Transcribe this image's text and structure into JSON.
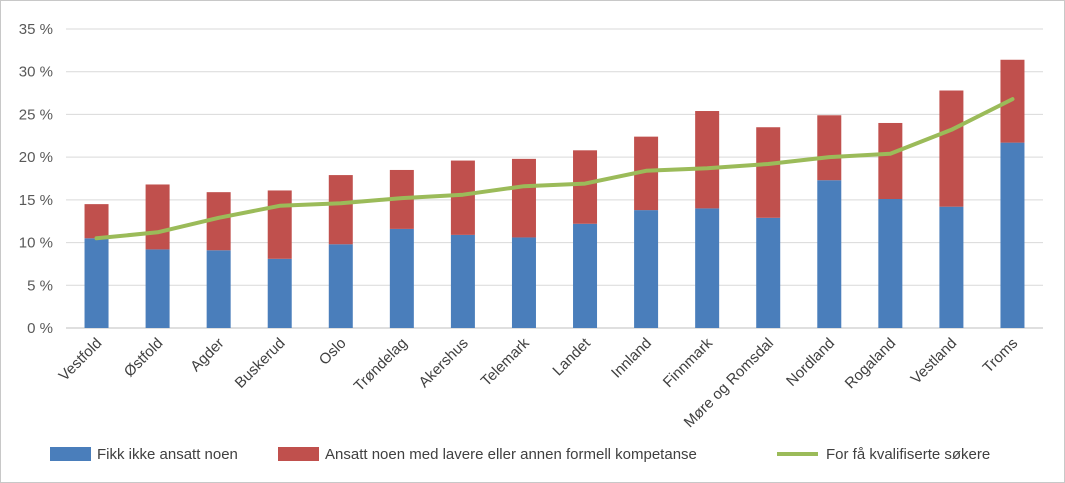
{
  "chart_data": {
    "type": "bar",
    "stacked": true,
    "title": "",
    "xlabel": "",
    "ylabel": "",
    "ylim": [
      0,
      35
    ],
    "y_ticks": [
      0,
      5,
      10,
      15,
      20,
      25,
      30,
      35
    ],
    "y_tick_labels": [
      "0 %",
      "5 %",
      "10 %",
      "15 %",
      "20 %",
      "25 %",
      "30 %",
      "35 %"
    ],
    "grid": true,
    "legend_position": "bottom",
    "categories": [
      "Vestfold",
      "Østfold",
      "Agder",
      "Buskerud",
      "Oslo",
      "Trøndelag",
      "Akershus",
      "Telemark",
      "Landet",
      "Innland",
      "Finnmark",
      "Møre og Romsdal",
      "Nordland",
      "Rogaland",
      "Vestland",
      "Troms"
    ],
    "series": [
      {
        "name": "Fikk ikke ansatt noen",
        "kind": "bar",
        "color": "#4a7ebb",
        "values": [
          10.5,
          9.2,
          9.1,
          8.1,
          9.8,
          11.6,
          10.9,
          10.6,
          12.2,
          13.8,
          14.0,
          12.9,
          17.3,
          15.1,
          14.2,
          21.7
        ]
      },
      {
        "name": "Ansatt noen med lavere eller annen formell kompetanse",
        "kind": "bar",
        "color": "#c0504d",
        "values": [
          4.0,
          7.6,
          6.8,
          8.0,
          8.1,
          6.9,
          8.7,
          9.2,
          8.6,
          8.6,
          11.4,
          10.6,
          7.6,
          8.9,
          13.6,
          9.7
        ]
      },
      {
        "name": "For få kvalifiserte søkere",
        "kind": "line",
        "color": "#9bbb59",
        "values": [
          10.5,
          11.2,
          12.9,
          14.3,
          14.6,
          15.2,
          15.6,
          16.6,
          16.9,
          18.4,
          18.7,
          19.2,
          20.0,
          20.4,
          23.2,
          26.8
        ]
      }
    ]
  }
}
